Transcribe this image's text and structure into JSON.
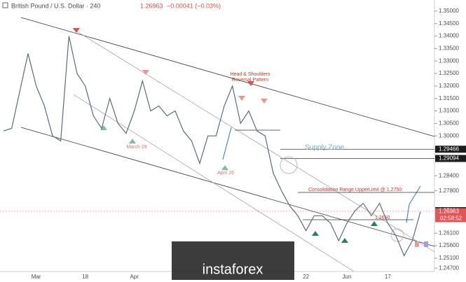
{
  "header": {
    "symbol": "British Pound / U.S. Dollar · 240",
    "price": "1.26963",
    "change": "−0.00041 (−0.03%)"
  },
  "chart_data": {
    "type": "line",
    "color": "#5a6c7a",
    "categories": [
      null,
      null,
      null,
      null,
      "Mar",
      null,
      null,
      null,
      null,
      null,
      "18",
      null,
      null,
      null,
      null,
      null,
      "Apr",
      null,
      null,
      null,
      null,
      null,
      null,
      null,
      null,
      null,
      null,
      null,
      null,
      null,
      null,
      null,
      null,
      null,
      null,
      null,
      null,
      "22",
      null,
      null,
      null,
      null,
      "Jun",
      null,
      null,
      null,
      null,
      "17",
      null,
      null,
      null,
      null
    ],
    "values": [
      1.302,
      1.303,
      1.318,
      1.333,
      1.32,
      1.312,
      1.3,
      1.298,
      1.34,
      1.325,
      1.32,
      1.308,
      1.303,
      1.315,
      1.305,
      1.301,
      1.31,
      1.322,
      1.31,
      1.312,
      1.308,
      1.31,
      1.302,
      1.298,
      1.289,
      1.3,
      1.3,
      1.312,
      1.32,
      1.305,
      1.31,
      1.302,
      1.3,
      1.285,
      1.278,
      1.272,
      1.268,
      1.262,
      1.268,
      1.268,
      1.265,
      1.258,
      1.265,
      1.27,
      1.273,
      1.268,
      1.273,
      1.265,
      1.26,
      1.252,
      1.258,
      1.2696
    ],
    "ylim": [
      1.2465,
      1.3522
    ],
    "yticks": [
      {
        "value": 1.35,
        "label": "1.35000"
      },
      {
        "value": 1.345,
        "label": "1.34500"
      },
      {
        "value": 1.34,
        "label": "1.34000"
      },
      {
        "value": 1.335,
        "label": "1.33500"
      },
      {
        "value": 1.33,
        "label": "1.33000"
      },
      {
        "value": 1.325,
        "label": "1.32500"
      },
      {
        "value": 1.32,
        "label": "1.32000"
      },
      {
        "value": 1.315,
        "label": "1.31500"
      },
      {
        "value": 1.31,
        "label": "1.31000"
      },
      {
        "value": 1.305,
        "label": "1.30500"
      },
      {
        "value": 1.3,
        "label": "1.30000"
      },
      {
        "value": 1.284,
        "label": "1.28400"
      },
      {
        "value": 1.278,
        "label": "1.27800"
      },
      {
        "value": 1.261,
        "label": "1.26100"
      },
      {
        "value": 1.256,
        "label": "1.25600"
      },
      {
        "value": 1.251,
        "label": "1.25100"
      },
      {
        "value": 1.247,
        "label": "1.24700"
      }
    ],
    "price_labels": [
      {
        "value": 1.29466,
        "label": "1.29466"
      },
      {
        "value": 1.29094,
        "label": "1.29094"
      },
      {
        "value": 1.27004,
        "label": "1.27004"
      },
      {
        "value": 1.26963,
        "label": "1.26963"
      }
    ],
    "countdown": "02:58:52",
    "annotations": {
      "pattern": [
        "Head & Shoulders",
        "Reversal Pattern"
      ],
      "march": "March 29",
      "april": "April 26",
      "supply": "Supply Zone",
      "consolidation": "Consolidation Range UpperLimit @ 1.2750",
      "support": "1.2650"
    }
  },
  "watermark": "instaforex"
}
